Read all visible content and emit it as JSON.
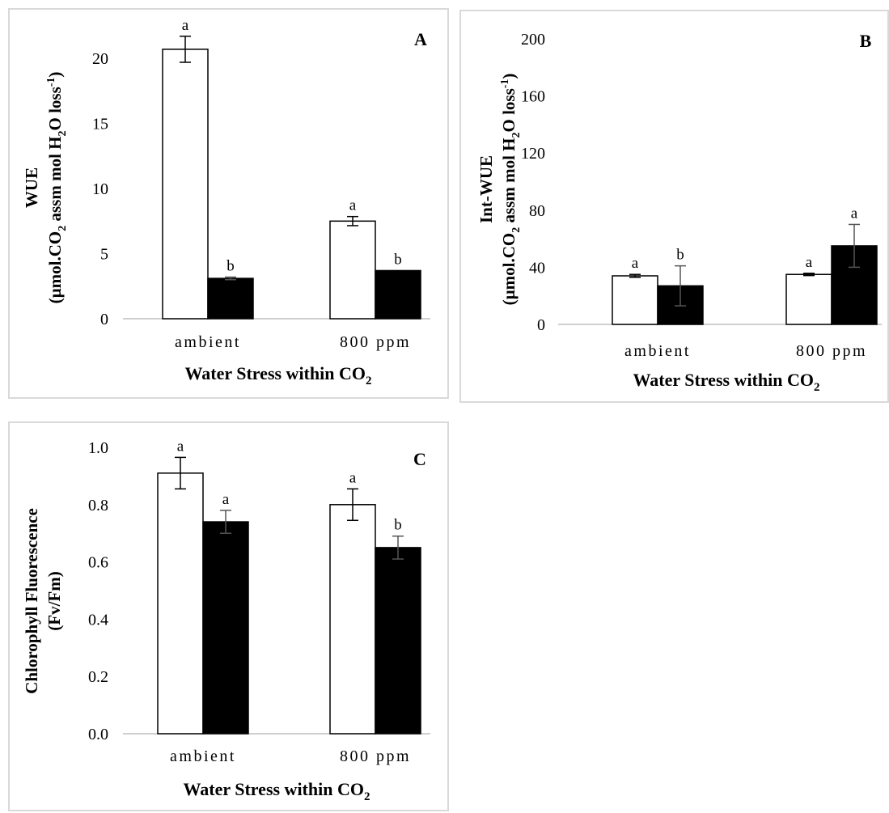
{
  "chart_data": [
    {
      "type": "bar",
      "panel_letter": "A",
      "categories": [
        "ambient",
        "800 ppm"
      ],
      "series": [
        {
          "fill": "#ffffff",
          "values": [
            20.7,
            7.5
          ],
          "errors": [
            1.0,
            0.35
          ],
          "significance": [
            "a",
            "a"
          ]
        },
        {
          "fill": "#000000",
          "values": [
            3.1,
            3.7
          ],
          "errors": [
            0.1,
            0.0
          ],
          "significance": [
            "b",
            "b"
          ]
        }
      ],
      "xlabel": {
        "text": "Water Stress within CO",
        "sub": "2",
        "after": ""
      },
      "ylabel_line1": "WUE",
      "ylabel_line2": {
        "pre": "(µmol.CO",
        "sub1": "2",
        "mid": " assm mol H",
        "sub2": "2",
        "post": "O loss",
        "sup": "-1",
        "end": ")"
      },
      "ylim": [
        0,
        22
      ],
      "yticks": [
        0,
        5,
        10,
        15,
        20
      ],
      "yticklabels": [
        "0",
        "5",
        "10",
        "15",
        "20"
      ]
    },
    {
      "type": "bar",
      "panel_letter": "B",
      "categories": [
        "ambient",
        "800 ppm"
      ],
      "series": [
        {
          "fill": "#ffffff",
          "values": [
            34,
            35
          ],
          "errors": [
            1,
            0.8
          ],
          "significance": [
            "a",
            "a"
          ]
        },
        {
          "fill": "#000000",
          "values": [
            27,
            55
          ],
          "errors": [
            14,
            15
          ],
          "significance": [
            "b",
            "a"
          ]
        }
      ],
      "xlabel": {
        "text": "Water Stress within CO",
        "sub": "2",
        "after": ""
      },
      "ylabel_line1": "Int-WUE",
      "ylabel_line2": {
        "pre": "(µmol.CO",
        "sub1": "2",
        "mid": " assm mol H",
        "sub2": "2",
        "post": "O loss",
        "sup": "-1",
        "end": ")"
      },
      "ylim": [
        0,
        200
      ],
      "yticks": [
        0,
        40,
        80,
        120,
        160,
        200
      ],
      "yticklabels": [
        "0",
        "40",
        "80",
        "120",
        "160",
        "200"
      ]
    },
    {
      "type": "bar",
      "panel_letter": "C",
      "categories": [
        "ambient",
        "800 ppm"
      ],
      "series": [
        {
          "fill": "#ffffff",
          "values": [
            0.91,
            0.8
          ],
          "errors": [
            0.055,
            0.055
          ],
          "significance": [
            "a",
            "a"
          ]
        },
        {
          "fill": "#000000",
          "values": [
            0.74,
            0.65
          ],
          "errors": [
            0.04,
            0.04
          ],
          "significance": [
            "a",
            "b"
          ]
        }
      ],
      "xlabel": {
        "text": "Water Stress within CO",
        "sub": "2",
        "after": ""
      },
      "ylabel_line1": "Chlorophyll Fluorescence",
      "ylabel_line2": {
        "pre": "(Fv/Fm)",
        "sub1": "",
        "mid": "",
        "sub2": "",
        "post": "",
        "sup": "",
        "end": ""
      },
      "ylim": [
        0,
        1.0
      ],
      "yticks": [
        0,
        0.2,
        0.4,
        0.6,
        0.8,
        1.0
      ],
      "yticklabels": [
        "0.0",
        "0.2",
        "0.4",
        "0.6",
        "0.8",
        "1.0"
      ]
    }
  ]
}
